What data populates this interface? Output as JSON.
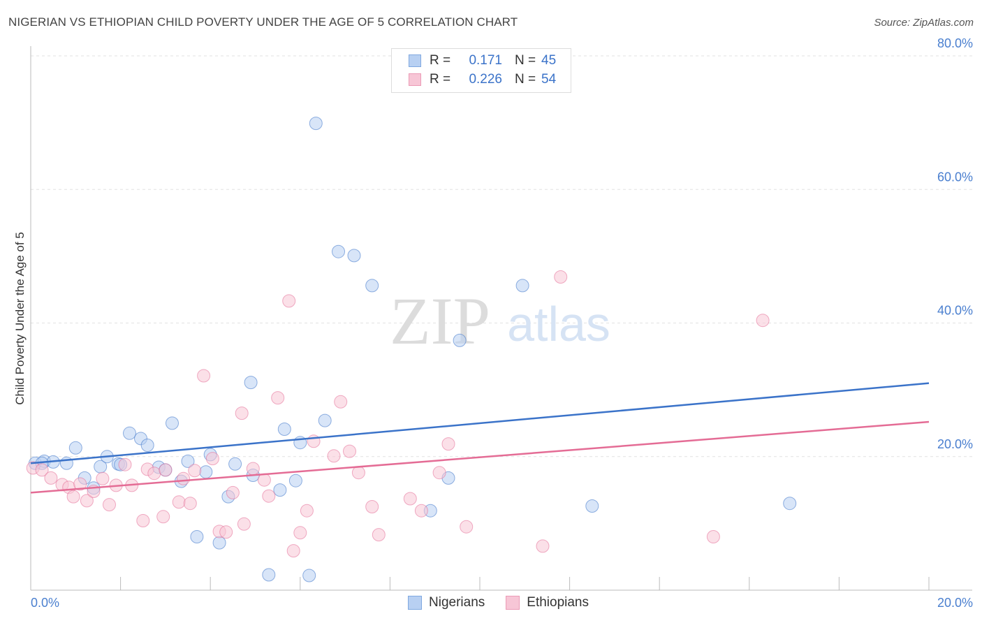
{
  "header": {
    "title": "NIGERIAN VS ETHIOPIAN CHILD POVERTY UNDER THE AGE OF 5 CORRELATION CHART",
    "source": "Source: ZipAtlas.com"
  },
  "watermark": {
    "zip": "ZIP",
    "atlas": "atlas"
  },
  "legend": {
    "rows": [
      {
        "r_label": "R =",
        "r_value": "0.171",
        "n_label": "N =",
        "n_value": "45",
        "fill": "#b8d0f2",
        "stroke": "#7fa8e0"
      },
      {
        "r_label": "R =",
        "r_value": "0.226",
        "n_label": "N =",
        "n_value": "54",
        "fill": "#f7c6d6",
        "stroke": "#eb9bb6"
      }
    ],
    "bottom": [
      {
        "label": "Nigerians",
        "fill": "#b8d0f2",
        "stroke": "#7fa8e0"
      },
      {
        "label": "Ethiopians",
        "fill": "#f7c6d6",
        "stroke": "#eb9bb6"
      }
    ]
  },
  "chart_data": {
    "type": "scatter",
    "title": "NIGERIAN VS ETHIOPIAN CHILD POVERTY UNDER THE AGE OF 5 CORRELATION CHART",
    "xlabel": "",
    "ylabel": "Child Poverty Under the Age of 5",
    "xlim": [
      0,
      20
    ],
    "ylim": [
      0,
      80
    ],
    "x_tick_labels": [
      "0.0%",
      "20.0%"
    ],
    "y_ticks": [
      20,
      40,
      60,
      80
    ],
    "y_tick_labels": [
      "20.0%",
      "40.0%",
      "60.0%",
      "80.0%"
    ],
    "grid": true,
    "legend_position": "top-center",
    "series": [
      {
        "name": "Nigerians",
        "color": "#3b73c9",
        "fill": "#b8d0f2",
        "trend": {
          "x": [
            0,
            20
          ],
          "y": [
            19.0,
            31.0
          ]
        },
        "points": [
          [
            0.1,
            19.0
          ],
          [
            0.3,
            19.3
          ],
          [
            0.5,
            19.2
          ],
          [
            0.8,
            19.0
          ],
          [
            1.0,
            21.3
          ],
          [
            1.2,
            16.8
          ],
          [
            1.4,
            15.3
          ],
          [
            1.55,
            18.5
          ],
          [
            1.7,
            20.0
          ],
          [
            1.95,
            18.9
          ],
          [
            2.0,
            18.8
          ],
          [
            2.2,
            23.5
          ],
          [
            2.45,
            22.7
          ],
          [
            2.6,
            21.7
          ],
          [
            2.85,
            18.4
          ],
          [
            3.0,
            18.0
          ],
          [
            3.15,
            25.0
          ],
          [
            3.35,
            16.3
          ],
          [
            3.5,
            19.3
          ],
          [
            3.7,
            8.0
          ],
          [
            3.9,
            17.7
          ],
          [
            4.0,
            20.3
          ],
          [
            4.2,
            7.1
          ],
          [
            4.4,
            14.0
          ],
          [
            4.55,
            18.9
          ],
          [
            4.9,
            31.1
          ],
          [
            4.95,
            17.2
          ],
          [
            5.3,
            2.3
          ],
          [
            5.55,
            15.0
          ],
          [
            5.65,
            24.1
          ],
          [
            5.9,
            16.4
          ],
          [
            6.0,
            22.1
          ],
          [
            6.2,
            2.2
          ],
          [
            6.35,
            69.9
          ],
          [
            6.55,
            25.4
          ],
          [
            6.85,
            50.7
          ],
          [
            7.2,
            50.1
          ],
          [
            7.6,
            45.6
          ],
          [
            8.9,
            11.9
          ],
          [
            9.3,
            16.8
          ],
          [
            9.55,
            37.4
          ],
          [
            10.95,
            45.6
          ],
          [
            12.5,
            12.6
          ],
          [
            16.9,
            13.0
          ],
          [
            0.25,
            19.0
          ]
        ]
      },
      {
        "name": "Ethiopians",
        "color": "#e46c95",
        "fill": "#f7c6d6",
        "trend": {
          "x": [
            0,
            20
          ],
          "y": [
            14.6,
            25.2
          ]
        },
        "points": [
          [
            0.05,
            18.3
          ],
          [
            0.25,
            18.0
          ],
          [
            0.45,
            16.8
          ],
          [
            0.7,
            15.8
          ],
          [
            0.85,
            15.4
          ],
          [
            0.95,
            14.0
          ],
          [
            1.1,
            15.9
          ],
          [
            1.25,
            13.4
          ],
          [
            1.4,
            14.8
          ],
          [
            1.6,
            16.7
          ],
          [
            1.75,
            12.8
          ],
          [
            1.9,
            15.7
          ],
          [
            2.1,
            18.8
          ],
          [
            2.25,
            15.7
          ],
          [
            2.5,
            10.4
          ],
          [
            2.6,
            18.1
          ],
          [
            2.75,
            17.5
          ],
          [
            2.95,
            11.0
          ],
          [
            3.0,
            18.0
          ],
          [
            3.3,
            13.2
          ],
          [
            3.4,
            16.7
          ],
          [
            3.55,
            13.0
          ],
          [
            3.65,
            17.9
          ],
          [
            3.85,
            32.1
          ],
          [
            4.05,
            19.7
          ],
          [
            4.2,
            8.8
          ],
          [
            4.35,
            8.7
          ],
          [
            4.5,
            14.6
          ],
          [
            4.7,
            26.5
          ],
          [
            4.75,
            9.9
          ],
          [
            4.95,
            18.2
          ],
          [
            5.2,
            16.5
          ],
          [
            5.3,
            14.1
          ],
          [
            5.5,
            28.8
          ],
          [
            5.75,
            43.3
          ],
          [
            5.85,
            5.9
          ],
          [
            6.0,
            8.6
          ],
          [
            6.15,
            11.9
          ],
          [
            6.3,
            22.3
          ],
          [
            6.75,
            20.1
          ],
          [
            6.9,
            28.2
          ],
          [
            7.1,
            20.8
          ],
          [
            7.3,
            17.6
          ],
          [
            7.6,
            12.5
          ],
          [
            7.75,
            8.3
          ],
          [
            8.45,
            13.7
          ],
          [
            8.7,
            11.9
          ],
          [
            9.1,
            17.6
          ],
          [
            9.3,
            21.9
          ],
          [
            9.7,
            9.5
          ],
          [
            11.4,
            6.6
          ],
          [
            11.8,
            46.9
          ],
          [
            15.2,
            8.0
          ],
          [
            16.3,
            40.4
          ]
        ]
      }
    ]
  }
}
